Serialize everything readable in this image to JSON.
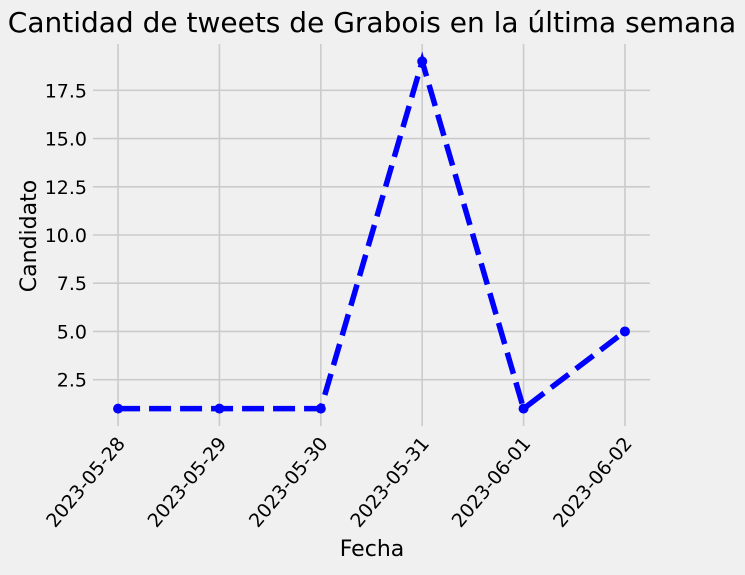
{
  "chart_data": {
    "type": "line",
    "title": "Cantidad de tweets de Grabois en la última semana",
    "xlabel": "Fecha",
    "ylabel": "Candidato",
    "x": [
      "2023-05-28",
      "2023-05-29",
      "2023-05-30",
      "2023-05-31",
      "2023-06-01",
      "2023-06-02"
    ],
    "series": [
      {
        "values": [
          1,
          1,
          1,
          19,
          1,
          5
        ],
        "color": "#0000ff",
        "line_style": "dashed",
        "marker": "circle"
      }
    ],
    "ylim": [
      0.1,
      19.9
    ],
    "yticks": [
      "2.5",
      "5.0",
      "7.5",
      "10.0",
      "12.5",
      "15.0",
      "17.5"
    ],
    "grid": true,
    "background": "#f0f0f0",
    "grid_color": "#cbcbcb"
  }
}
